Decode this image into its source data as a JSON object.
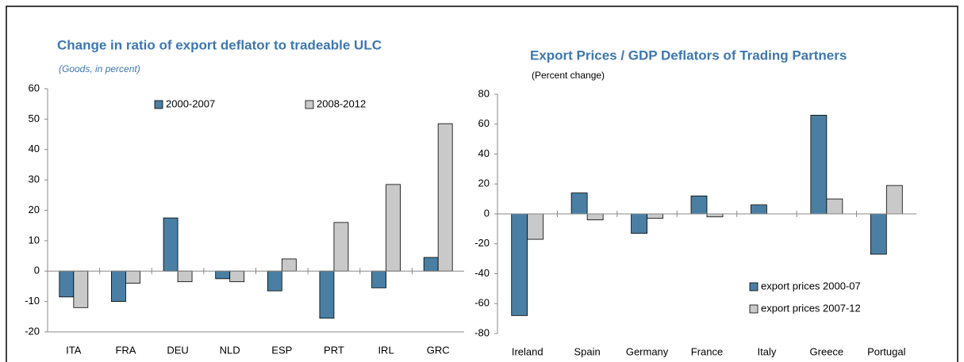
{
  "chart_data": [
    {
      "type": "bar",
      "title": "Change in ratio of export deflator to tradeable ULC",
      "subtitle": "(Goods, in percent)",
      "categories": [
        "ITA",
        "FRA",
        "DEU",
        "NLD",
        "ESP",
        "PRT",
        "IRL",
        "GRC"
      ],
      "series": [
        {
          "name": "2000-2007",
          "color": "#4a7fa3",
          "values": [
            -8.5,
            -10,
            17.5,
            -2.5,
            -6.5,
            -15.5,
            -5.5,
            4.5
          ]
        },
        {
          "name": "2008-2012",
          "color": "#c9c9c9",
          "values": [
            -12,
            -4,
            -3.5,
            -3.5,
            4,
            16,
            28.5,
            48.5
          ]
        }
      ],
      "ylim": [
        -20,
        60
      ],
      "yticks": [
        -20,
        -10,
        0,
        10,
        20,
        30,
        40,
        50,
        60
      ],
      "legend": "top"
    },
    {
      "type": "bar",
      "title": "Export Prices / GDP Deflators of Trading Partners",
      "subtitle": "(Percent change)",
      "categories": [
        "Ireland",
        "Spain",
        "Germany",
        "France",
        "Italy",
        "Greece",
        "Portugal"
      ],
      "series": [
        {
          "name": "export prices 2000-07",
          "color": "#4a7fa3",
          "values": [
            -68,
            14,
            -13,
            12,
            6,
            66,
            -27
          ]
        },
        {
          "name": "export prices 2007-12",
          "color": "#c9c9c9",
          "values": [
            -17,
            -4,
            -3,
            -2,
            0,
            10,
            19
          ]
        }
      ],
      "ylim": [
        -80,
        80
      ],
      "yticks": [
        -80,
        -60,
        -40,
        -20,
        0,
        20,
        40,
        60,
        80
      ],
      "legend": "lower right"
    }
  ]
}
